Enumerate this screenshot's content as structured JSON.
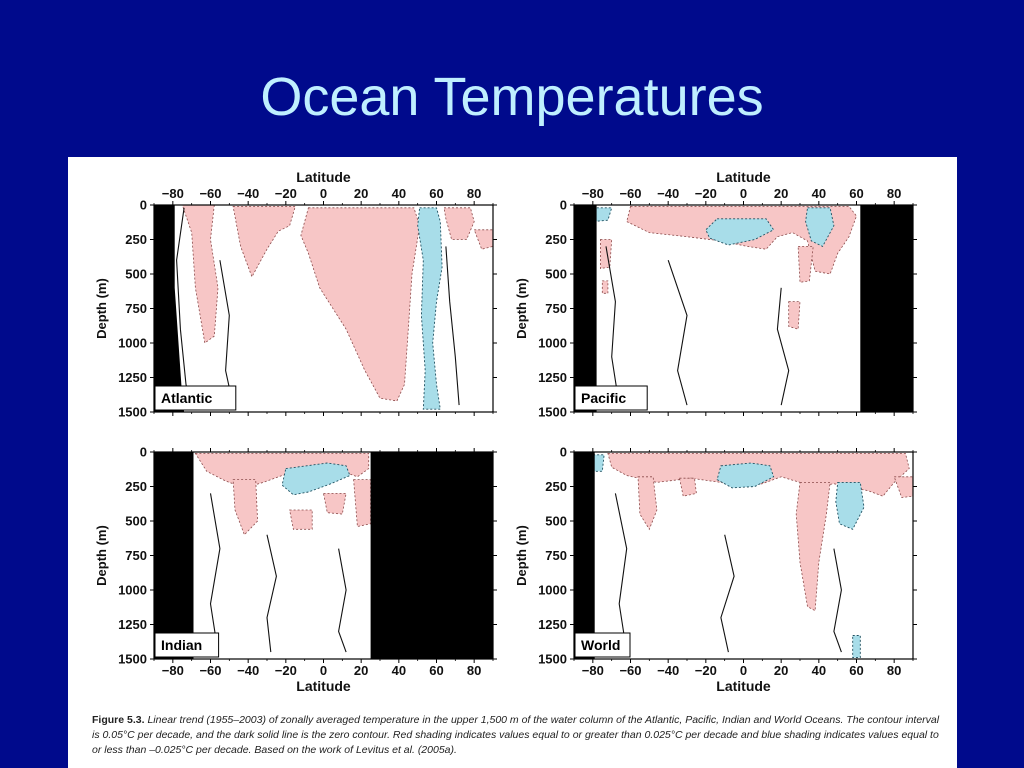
{
  "slide": {
    "title": "Ocean Temperatures"
  },
  "colors": {
    "background": "#000a8c",
    "title": "#bfefff",
    "warming": "#f7c6c6",
    "cooling": "#a8dde9",
    "land": "#000000"
  },
  "caption": {
    "label": "Figure 5.3.",
    "text": "Linear trend (1955–2003) of zonally averaged temperature in the upper 1,500 m of the water column of the Atlantic, Pacific, Indian and World Oceans. The contour interval is 0.05°C per decade, and the dark solid line is the zero contour. Red shading indicates values equal to or greater than 0.025°C per decade and blue shading indicates values equal to or less than –0.025°C per decade. Based on the work of Levitus et al. (2005a)."
  },
  "chart_data": [
    {
      "type": "heatmap",
      "basin": "Atlantic",
      "xlabel": "Latitude",
      "ylabel": "Depth (m)",
      "x_ticks": [
        -80,
        -60,
        -40,
        -20,
        0,
        20,
        40,
        60,
        80
      ],
      "y_ticks": [
        0,
        250,
        500,
        750,
        1000,
        1250,
        1500
      ],
      "xlim": [
        -90,
        90
      ],
      "ylim": [
        0,
        1500
      ],
      "land_mask": [
        [
          [
            -90,
            0
          ],
          [
            -79,
            0
          ],
          [
            -79,
            600
          ],
          [
            -75,
            1400
          ],
          [
            -74,
            1500
          ],
          [
            -90,
            1500
          ]
        ]
      ],
      "warm_regions": [
        [
          [
            -75,
            0
          ],
          [
            -58,
            0
          ],
          [
            -60,
            250
          ],
          [
            -56,
            600
          ],
          [
            -58,
            950
          ],
          [
            -63,
            1000
          ],
          [
            -68,
            600
          ],
          [
            -70,
            200
          ]
        ],
        [
          [
            -48,
            10
          ],
          [
            -15,
            10
          ],
          [
            -18,
            150
          ],
          [
            -24,
            190
          ],
          [
            -30,
            320
          ],
          [
            -38,
            520
          ],
          [
            -44,
            300
          ]
        ],
        [
          [
            -8,
            20
          ],
          [
            48,
            20
          ],
          [
            51,
            150
          ],
          [
            47,
            500
          ],
          [
            45,
            900
          ],
          [
            43,
            1300
          ],
          [
            39,
            1420
          ],
          [
            30,
            1400
          ],
          [
            22,
            1200
          ],
          [
            12,
            900
          ],
          [
            -2,
            600
          ],
          [
            -8,
            350
          ],
          [
            -12,
            220
          ]
        ],
        [
          [
            64,
            20
          ],
          [
            78,
            20
          ],
          [
            80,
            120
          ],
          [
            76,
            250
          ],
          [
            68,
            250
          ],
          [
            65,
            100
          ]
        ],
        [
          [
            80,
            180
          ],
          [
            90,
            180
          ],
          [
            90,
            300
          ],
          [
            84,
            320
          ]
        ]
      ],
      "cool_regions": [
        [
          [
            51,
            20
          ],
          [
            60,
            20
          ],
          [
            62,
            120
          ],
          [
            63,
            450
          ],
          [
            60,
            700
          ],
          [
            58,
            1000
          ],
          [
            60,
            1300
          ],
          [
            62,
            1480
          ],
          [
            53,
            1480
          ],
          [
            54,
            1200
          ],
          [
            52,
            800
          ],
          [
            53,
            400
          ],
          [
            50,
            150
          ]
        ]
      ],
      "zero_contours": [
        [
          [
            -74,
            20
          ],
          [
            -78,
            400
          ],
          [
            -76,
            900
          ],
          [
            -73,
            1300
          ],
          [
            -70,
            1480
          ]
        ],
        [
          [
            -55,
            400
          ],
          [
            -50,
            800
          ],
          [
            -52,
            1200
          ],
          [
            -48,
            1450
          ]
        ],
        [
          [
            65,
            300
          ],
          [
            67,
            700
          ],
          [
            70,
            1100
          ],
          [
            72,
            1450
          ]
        ]
      ]
    },
    {
      "type": "heatmap",
      "basin": "Pacific",
      "xlabel": "Latitude",
      "ylabel": "Depth (m)",
      "x_ticks": [
        -80,
        -60,
        -40,
        -20,
        0,
        20,
        40,
        60,
        80
      ],
      "y_ticks": [
        0,
        250,
        500,
        750,
        1000,
        1250,
        1500
      ],
      "xlim": [
        -90,
        90
      ],
      "ylim": [
        0,
        1500
      ],
      "land_mask": [
        [
          [
            -90,
            0
          ],
          [
            -78,
            0
          ],
          [
            -78,
            1500
          ],
          [
            -90,
            1500
          ]
        ],
        [
          [
            62,
            0
          ],
          [
            90,
            0
          ],
          [
            90,
            1500
          ],
          [
            62,
            1500
          ]
        ]
      ],
      "warm_regions": [
        [
          [
            -60,
            10
          ],
          [
            56,
            10
          ],
          [
            60,
            80
          ],
          [
            56,
            230
          ],
          [
            50,
            350
          ],
          [
            46,
            500
          ],
          [
            38,
            480
          ],
          [
            34,
            260
          ],
          [
            26,
            200
          ],
          [
            18,
            230
          ],
          [
            12,
            320
          ],
          [
            2,
            300
          ],
          [
            -12,
            260
          ],
          [
            -30,
            230
          ],
          [
            -50,
            200
          ],
          [
            -62,
            120
          ]
        ],
        [
          [
            29,
            300
          ],
          [
            37,
            300
          ],
          [
            35,
            550
          ],
          [
            30,
            560
          ]
        ],
        [
          [
            -76,
            250
          ],
          [
            -70,
            250
          ],
          [
            -71,
            450
          ],
          [
            -76,
            460
          ]
        ],
        [
          [
            24,
            700
          ],
          [
            30,
            700
          ],
          [
            29,
            900
          ],
          [
            24,
            880
          ]
        ],
        [
          [
            -75,
            550
          ],
          [
            -72,
            550
          ],
          [
            -72,
            640
          ],
          [
            -75,
            640
          ]
        ]
      ],
      "cool_regions": [
        [
          [
            -14,
            100
          ],
          [
            12,
            100
          ],
          [
            16,
            180
          ],
          [
            6,
            250
          ],
          [
            -8,
            290
          ],
          [
            -18,
            240
          ],
          [
            -20,
            180
          ]
        ],
        [
          [
            34,
            20
          ],
          [
            46,
            20
          ],
          [
            48,
            150
          ],
          [
            42,
            300
          ],
          [
            36,
            260
          ],
          [
            33,
            120
          ]
        ],
        [
          [
            -80,
            20
          ],
          [
            -70,
            20
          ],
          [
            -72,
            110
          ],
          [
            -80,
            120
          ]
        ]
      ],
      "zero_contours": [
        [
          [
            -73,
            300
          ],
          [
            -68,
            700
          ],
          [
            -70,
            1100
          ],
          [
            -66,
            1450
          ]
        ],
        [
          [
            -40,
            400
          ],
          [
            -30,
            800
          ],
          [
            -35,
            1200
          ],
          [
            -30,
            1450
          ]
        ],
        [
          [
            20,
            600
          ],
          [
            18,
            900
          ],
          [
            24,
            1200
          ],
          [
            20,
            1450
          ]
        ]
      ]
    },
    {
      "type": "heatmap",
      "basin": "Indian",
      "xlabel": "Latitude",
      "ylabel": "Depth (m)",
      "x_ticks": [
        -80,
        -60,
        -40,
        -20,
        0,
        20,
        40,
        60,
        80
      ],
      "y_ticks": [
        0,
        250,
        500,
        750,
        1000,
        1250,
        1500
      ],
      "xlim": [
        -90,
        90
      ],
      "ylim": [
        0,
        1500
      ],
      "land_mask": [
        [
          [
            -90,
            0
          ],
          [
            -69,
            0
          ],
          [
            -69,
            1500
          ],
          [
            -90,
            1500
          ]
        ],
        [
          [
            25,
            0
          ],
          [
            90,
            0
          ],
          [
            90,
            1500
          ],
          [
            25,
            1500
          ]
        ]
      ],
      "warm_regions": [
        [
          [
            -68,
            10
          ],
          [
            24,
            10
          ],
          [
            24,
            120
          ],
          [
            18,
            180
          ],
          [
            12,
            150
          ],
          [
            4,
            160
          ],
          [
            -6,
            130
          ],
          [
            -14,
            150
          ],
          [
            -22,
            170
          ],
          [
            -32,
            220
          ],
          [
            -42,
            260
          ],
          [
            -52,
            210
          ],
          [
            -62,
            140
          ]
        ],
        [
          [
            -48,
            200
          ],
          [
            -36,
            200
          ],
          [
            -35,
            500
          ],
          [
            -42,
            600
          ],
          [
            -47,
            420
          ]
        ],
        [
          [
            16,
            200
          ],
          [
            25,
            200
          ],
          [
            25,
            520
          ],
          [
            18,
            540
          ]
        ],
        [
          [
            0,
            300
          ],
          [
            12,
            300
          ],
          [
            10,
            450
          ],
          [
            2,
            440
          ]
        ],
        [
          [
            -18,
            420
          ],
          [
            -6,
            420
          ],
          [
            -6,
            560
          ],
          [
            -16,
            560
          ]
        ]
      ],
      "cool_regions": [
        [
          [
            -20,
            120
          ],
          [
            2,
            80
          ],
          [
            12,
            100
          ],
          [
            14,
            170
          ],
          [
            4,
            230
          ],
          [
            -8,
            290
          ],
          [
            -16,
            310
          ],
          [
            -22,
            240
          ]
        ]
      ],
      "zero_contours": [
        [
          [
            -60,
            300
          ],
          [
            -55,
            700
          ],
          [
            -60,
            1100
          ],
          [
            -56,
            1450
          ]
        ],
        [
          [
            -30,
            600
          ],
          [
            -25,
            900
          ],
          [
            -30,
            1200
          ],
          [
            -28,
            1450
          ]
        ],
        [
          [
            8,
            700
          ],
          [
            12,
            1000
          ],
          [
            8,
            1300
          ],
          [
            12,
            1450
          ]
        ]
      ]
    },
    {
      "type": "heatmap",
      "basin": "World",
      "xlabel": "Latitude",
      "ylabel": "Depth (m)",
      "x_ticks": [
        -80,
        -60,
        -40,
        -20,
        0,
        20,
        40,
        60,
        80
      ],
      "y_ticks": [
        0,
        250,
        500,
        750,
        1000,
        1250,
        1500
      ],
      "xlim": [
        -90,
        90
      ],
      "ylim": [
        0,
        1500
      ],
      "land_mask": [
        [
          [
            -90,
            0
          ],
          [
            -79,
            0
          ],
          [
            -79,
            1500
          ],
          [
            -90,
            1500
          ]
        ]
      ],
      "warm_regions": [
        [
          [
            -72,
            10
          ],
          [
            86,
            10
          ],
          [
            88,
            120
          ],
          [
            80,
            220
          ],
          [
            74,
            320
          ],
          [
            66,
            280
          ],
          [
            58,
            260
          ],
          [
            48,
            230
          ],
          [
            40,
            250
          ],
          [
            30,
            220
          ],
          [
            20,
            180
          ],
          [
            10,
            230
          ],
          [
            0,
            250
          ],
          [
            -12,
            220
          ],
          [
            -28,
            190
          ],
          [
            -46,
            220
          ],
          [
            -62,
            170
          ],
          [
            -70,
            110
          ]
        ],
        [
          [
            -56,
            180
          ],
          [
            -48,
            180
          ],
          [
            -46,
            420
          ],
          [
            -50,
            560
          ],
          [
            -55,
            450
          ]
        ],
        [
          [
            -34,
            190
          ],
          [
            -26,
            190
          ],
          [
            -25,
            300
          ],
          [
            -32,
            320
          ]
        ],
        [
          [
            30,
            220
          ],
          [
            46,
            220
          ],
          [
            44,
            450
          ],
          [
            40,
            800
          ],
          [
            38,
            1150
          ],
          [
            34,
            1120
          ],
          [
            30,
            800
          ],
          [
            28,
            450
          ]
        ],
        [
          [
            80,
            180
          ],
          [
            90,
            180
          ],
          [
            90,
            320
          ],
          [
            84,
            330
          ]
        ]
      ],
      "cool_regions": [
        [
          [
            -12,
            100
          ],
          [
            4,
            80
          ],
          [
            14,
            100
          ],
          [
            16,
            180
          ],
          [
            6,
            250
          ],
          [
            -6,
            260
          ],
          [
            -14,
            200
          ]
        ],
        [
          [
            50,
            220
          ],
          [
            62,
            220
          ],
          [
            64,
            400
          ],
          [
            58,
            560
          ],
          [
            51,
            520
          ],
          [
            49,
            360
          ]
        ],
        [
          [
            -82,
            20
          ],
          [
            -74,
            20
          ],
          [
            -75,
            140
          ],
          [
            -82,
            140
          ]
        ],
        [
          [
            58,
            1330
          ],
          [
            62,
            1330
          ],
          [
            62,
            1490
          ],
          [
            58,
            1490
          ]
        ]
      ],
      "zero_contours": [
        [
          [
            -68,
            300
          ],
          [
            -62,
            700
          ],
          [
            -66,
            1100
          ],
          [
            -62,
            1450
          ]
        ],
        [
          [
            -10,
            600
          ],
          [
            -5,
            900
          ],
          [
            -12,
            1200
          ],
          [
            -8,
            1450
          ]
        ],
        [
          [
            48,
            700
          ],
          [
            52,
            1000
          ],
          [
            48,
            1300
          ],
          [
            52,
            1450
          ]
        ]
      ]
    }
  ]
}
